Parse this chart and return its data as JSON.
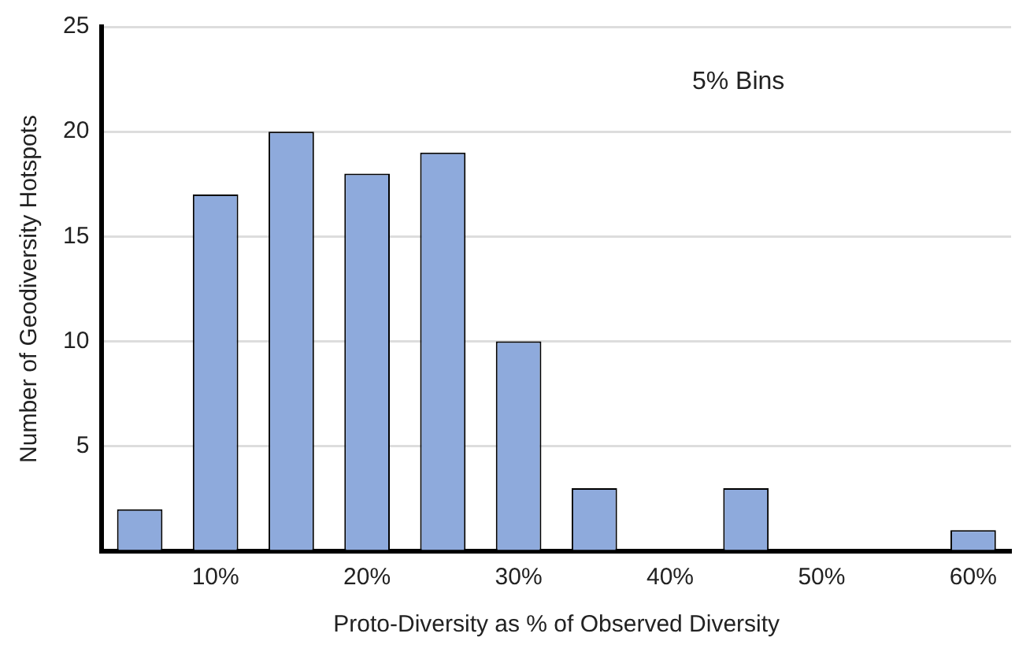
{
  "chart_data": {
    "type": "bar",
    "xlabel": "Proto-Diversity as % of Observed Diversity",
    "ylabel": "Number of Geodiversity Hotspots",
    "annotations": [
      "5% Bins"
    ],
    "categories": [
      null,
      "10%",
      null,
      "20%",
      null,
      "30%",
      null,
      "40%",
      null,
      "50%",
      null,
      "60%"
    ],
    "values": [
      2,
      17,
      20,
      18,
      19,
      10,
      3,
      0,
      3,
      0,
      0,
      1
    ],
    "color": "#8eaadc",
    "ylim": [
      0,
      25
    ],
    "yticks": [
      {
        "value": 0,
        "label": null
      },
      5,
      10,
      15,
      20,
      25
    ],
    "grid": "y"
  }
}
